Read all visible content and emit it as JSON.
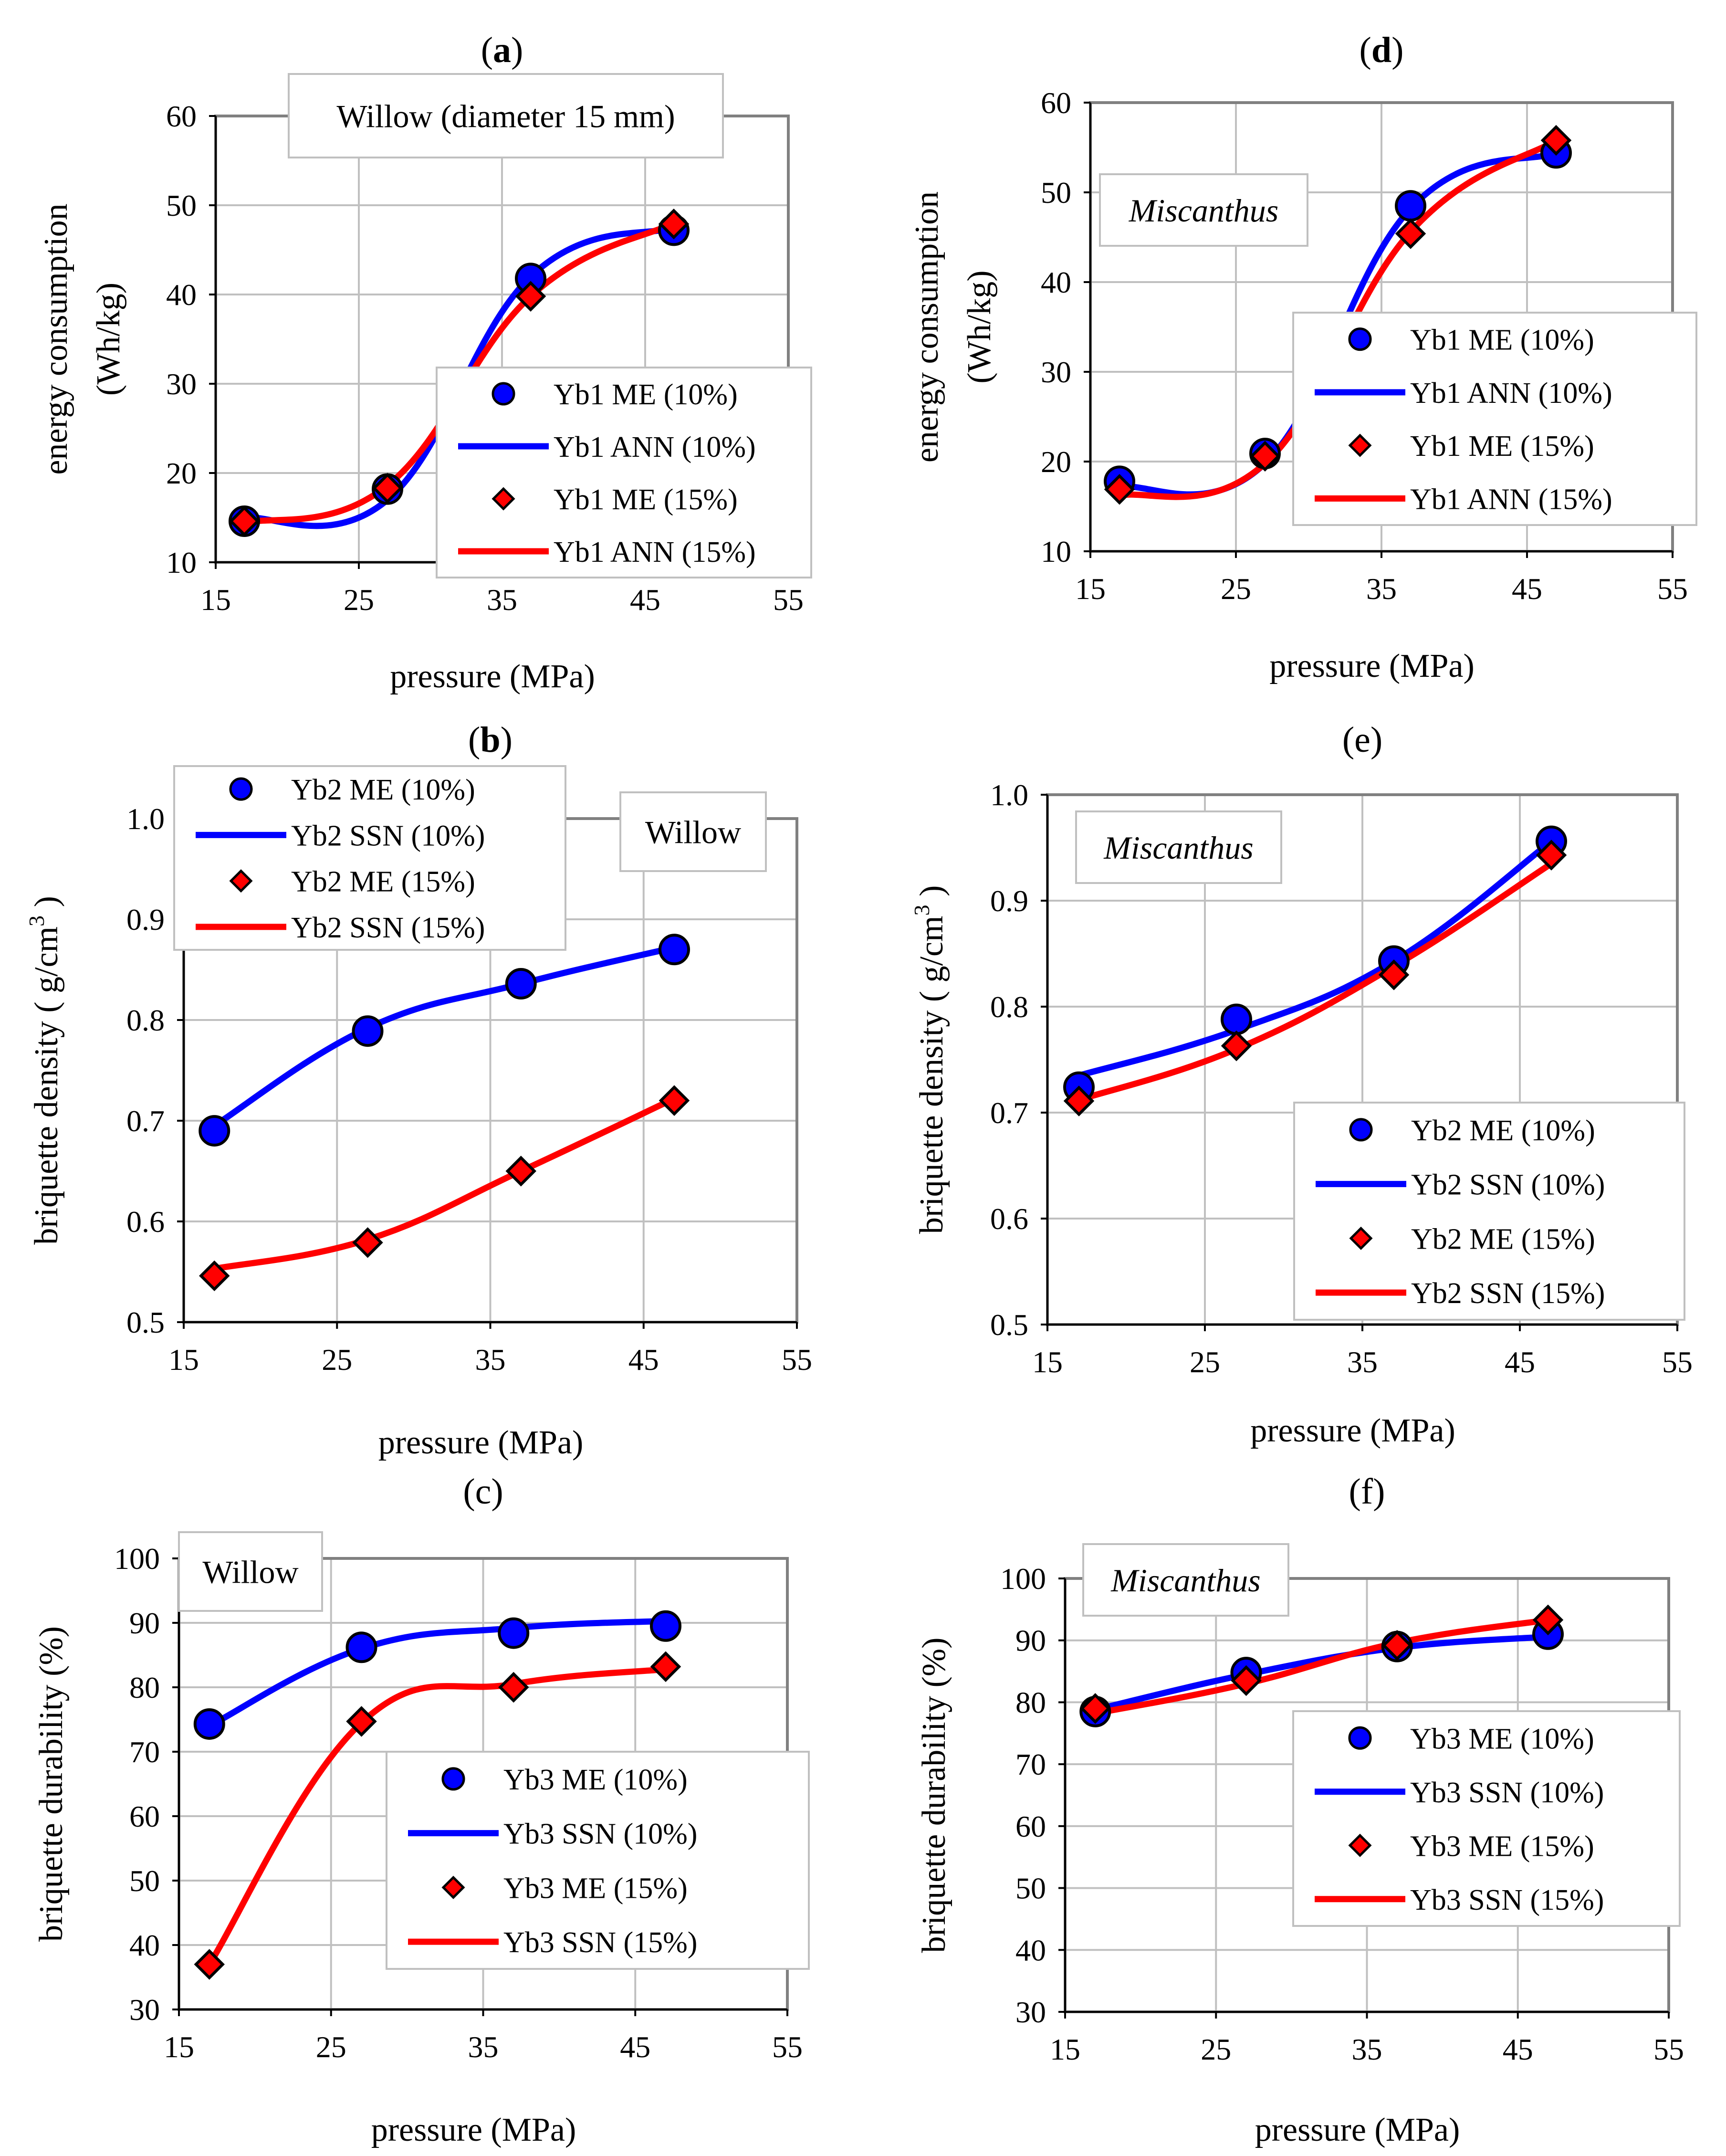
{
  "colors": {
    "me_10": "#0000ff",
    "ann_10": "#0000ff",
    "me_15": "#ff0000",
    "ann_15": "#ff0000",
    "grid": "#c0c0c0",
    "plot_border": "#808080"
  },
  "chart_data": [
    {
      "id": "a",
      "type": "line",
      "panel_parts": [
        "(",
        "a",
        ")"
      ],
      "panel_bold": true,
      "label": "Willow (diameter 15 mm)",
      "label_italic": false,
      "xlabel": "pressure (MPa)",
      "ylabel": [
        "energy consumption",
        "(Wh/kg)"
      ],
      "xlim": [
        15,
        55
      ],
      "ylim": [
        10,
        60
      ],
      "xticks": [
        15,
        25,
        35,
        45,
        55
      ],
      "yticks": [
        10,
        20,
        30,
        40,
        50,
        60
      ],
      "legend_position": "right-bottom",
      "x": [
        17,
        27,
        37,
        47
      ],
      "series": [
        {
          "name": "Yb1 ME (10%)",
          "kind": "marker-circle",
          "color": "#0000ff",
          "values": [
            14.6,
            18.2,
            41.8,
            47.2
          ]
        },
        {
          "name": "Yb1 ANN (10%)",
          "kind": "line",
          "color": "#0000ff",
          "values": [
            15.0,
            17.0,
            42.0,
            47.5
          ]
        },
        {
          "name": "Yb1 ME (15%)",
          "kind": "marker-diamond",
          "color": "#ff0000",
          "values": [
            14.6,
            18.3,
            39.8,
            47.9
          ]
        },
        {
          "name": "Yb1 ANN (15%)",
          "kind": "line",
          "color": "#ff0000",
          "values": [
            14.4,
            18.6,
            39.8,
            48.0
          ]
        }
      ]
    },
    {
      "id": "d",
      "type": "line",
      "panel_parts": [
        "(",
        "d",
        ")"
      ],
      "panel_bold": true,
      "label": "Miscanthus",
      "label_italic": true,
      "xlabel": "pressure (MPa)",
      "ylabel": [
        "energy consumption",
        "(Wh/kg)"
      ],
      "xlim": [
        15,
        55
      ],
      "ylim": [
        10,
        60
      ],
      "xticks": [
        15,
        25,
        35,
        45,
        55
      ],
      "yticks": [
        10,
        20,
        30,
        40,
        50,
        60
      ],
      "legend_position": "right-middle",
      "x": [
        17,
        27,
        37,
        47
      ],
      "series": [
        {
          "name": "Yb1 ME (10%)",
          "kind": "marker-circle",
          "color": "#0000ff",
          "values": [
            17.8,
            20.9,
            48.5,
            54.4
          ]
        },
        {
          "name": "Yb1 ANN (10%)",
          "kind": "line",
          "color": "#0000ff",
          "values": [
            17.2,
            19.8,
            48.2,
            54.4
          ]
        },
        {
          "name": "Yb1 ME (15%)",
          "kind": "marker-diamond",
          "color": "#ff0000",
          "values": [
            16.9,
            20.6,
            45.4,
            55.8
          ]
        },
        {
          "name": "Yb1 ANN (15%)",
          "kind": "line",
          "color": "#ff0000",
          "values": [
            16.2,
            19.8,
            45.6,
            55.8
          ]
        }
      ]
    },
    {
      "id": "b",
      "type": "line",
      "panel_parts": [
        "(",
        "b",
        ")"
      ],
      "panel_bold": true,
      "label": "Willow",
      "label_italic": false,
      "xlabel": "pressure (MPa)",
      "ylabel": [
        "briquette density  ( g/cm",
        "3",
        ")"
      ],
      "xlim": [
        15,
        55
      ],
      "ylim": [
        0.5,
        1.0
      ],
      "xticks": [
        15,
        25,
        35,
        45,
        55
      ],
      "yticks": [
        0.5,
        0.6,
        0.7,
        0.8,
        0.9,
        1.0
      ],
      "legend_position": "top-left",
      "x": [
        17,
        27,
        37,
        47
      ],
      "series": [
        {
          "name": "Yb2 ME (10%)",
          "kind": "marker-circle",
          "color": "#0000ff",
          "values": [
            0.69,
            0.789,
            0.836,
            0.87
          ]
        },
        {
          "name": "Yb2 SSN (10%)",
          "kind": "line",
          "color": "#0000ff",
          "values": [
            0.695,
            0.792,
            0.836,
            0.872
          ]
        },
        {
          "name": "Yb2 ME (15%)",
          "kind": "marker-diamond",
          "color": "#ff0000",
          "values": [
            0.546,
            0.579,
            0.65,
            0.72
          ]
        },
        {
          "name": "Yb2 SSN (15%)",
          "kind": "line",
          "color": "#ff0000",
          "values": [
            0.553,
            0.582,
            0.65,
            0.722
          ]
        }
      ]
    },
    {
      "id": "e",
      "type": "line",
      "panel_parts": [
        "(",
        "e",
        ")"
      ],
      "panel_bold": false,
      "label": "Miscanthus",
      "label_italic": true,
      "xlabel": "pressure (MPa)",
      "ylabel": [
        "briquette density  ( g/cm",
        "3",
        ")"
      ],
      "xlim": [
        15,
        55
      ],
      "ylim": [
        0.5,
        1.0
      ],
      "xticks": [
        15,
        25,
        35,
        45,
        55
      ],
      "yticks": [
        0.5,
        0.6,
        0.7,
        0.8,
        0.9,
        1.0
      ],
      "legend_position": "bottom-right",
      "x": [
        17,
        27,
        37,
        47
      ],
      "series": [
        {
          "name": "Yb2 ME (10%)",
          "kind": "marker-circle",
          "color": "#0000ff",
          "values": [
            0.724,
            0.788,
            0.843,
            0.956
          ]
        },
        {
          "name": "Yb2 SSN (10%)",
          "kind": "line",
          "color": "#0000ff",
          "values": [
            0.735,
            0.778,
            0.843,
            0.956
          ]
        },
        {
          "name": "Yb2 ME (15%)",
          "kind": "marker-diamond",
          "color": "#ff0000",
          "values": [
            0.711,
            0.763,
            0.83,
            0.943
          ]
        },
        {
          "name": "Yb2 SSN (15%)",
          "kind": "line",
          "color": "#ff0000",
          "values": [
            0.712,
            0.76,
            0.838,
            0.935
          ]
        }
      ]
    },
    {
      "id": "c",
      "type": "line",
      "panel_parts": [
        "(",
        "c",
        ")"
      ],
      "panel_bold": false,
      "label": "Willow",
      "label_italic": false,
      "xlabel": "pressure (MPa)",
      "ylabel": [
        "briquette durability (%)"
      ],
      "xlim": [
        15,
        55
      ],
      "ylim": [
        30,
        100
      ],
      "xticks": [
        15,
        25,
        35,
        45,
        55
      ],
      "yticks": [
        30,
        40,
        50,
        60,
        70,
        80,
        90,
        100
      ],
      "legend_position": "bottom-right",
      "x": [
        17,
        27,
        37,
        47
      ],
      "series": [
        {
          "name": "Yb3 ME (10%)",
          "kind": "marker-circle",
          "color": "#0000ff",
          "values": [
            74.3,
            86.2,
            88.4,
            89.5
          ]
        },
        {
          "name": "Yb3 SSN (10%)",
          "kind": "line",
          "color": "#0000ff",
          "values": [
            74.0,
            86.0,
            89.2,
            90.3
          ]
        },
        {
          "name": "Yb3 ME (15%)",
          "kind": "marker-diamond",
          "color": "#ff0000",
          "values": [
            37.0,
            74.7,
            80.0,
            83.2
          ]
        },
        {
          "name": "Yb3 SSN (15%)",
          "kind": "line",
          "color": "#ff0000",
          "values": [
            37.0,
            74.5,
            80.5,
            82.8
          ]
        }
      ]
    },
    {
      "id": "f",
      "type": "line",
      "panel_parts": [
        "(",
        "f",
        ")"
      ],
      "panel_bold": false,
      "label": "Miscanthus",
      "label_italic": true,
      "xlabel": "pressure (MPa)",
      "ylabel": [
        "briquette durability (%)"
      ],
      "xlim": [
        15,
        55
      ],
      "ylim": [
        30,
        100
      ],
      "xticks": [
        15,
        25,
        35,
        45,
        55
      ],
      "yticks": [
        30,
        40,
        50,
        60,
        70,
        80,
        90,
        100
      ],
      "legend_position": "bottom-right",
      "x": [
        17,
        27,
        37,
        47
      ],
      "series": [
        {
          "name": "Yb3 ME (10%)",
          "kind": "marker-circle",
          "color": "#0000ff",
          "values": [
            78.5,
            84.8,
            89.0,
            91.0
          ]
        },
        {
          "name": "Yb3 SSN (10%)",
          "kind": "line",
          "color": "#0000ff",
          "values": [
            78.8,
            84.5,
            88.8,
            90.6
          ]
        },
        {
          "name": "Yb3 ME (15%)",
          "kind": "marker-diamond",
          "color": "#ff0000",
          "values": [
            79.0,
            83.5,
            89.2,
            93.3
          ]
        },
        {
          "name": "Yb3 SSN (15%)",
          "kind": "line",
          "color": "#ff0000",
          "values": [
            78.2,
            83.0,
            89.6,
            93.3
          ]
        }
      ]
    }
  ]
}
